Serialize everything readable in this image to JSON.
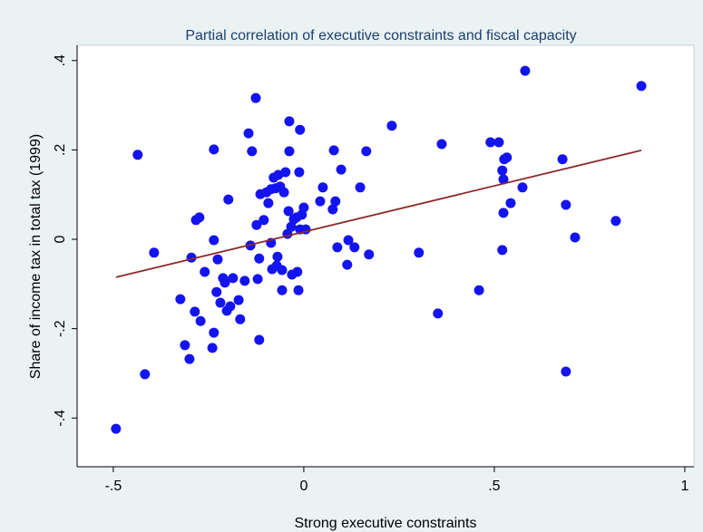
{
  "chart_data": {
    "type": "scatter",
    "title": "Partial correlation of executive constraints and fiscal capacity",
    "xlabel": "Strong executive constraints",
    "ylabel": "Share of income tax in total tax (1999)",
    "color": "#1414f0",
    "x": [
      -0.493,
      -0.436,
      -0.417,
      -0.393,
      -0.324,
      -0.312,
      -0.3,
      -0.295,
      -0.283,
      -0.274,
      -0.286,
      -0.271,
      -0.26,
      -0.24,
      -0.236,
      -0.236,
      -0.236,
      -0.229,
      -0.226,
      -0.219,
      -0.212,
      -0.207,
      -0.202,
      -0.198,
      -0.193,
      -0.186,
      -0.171,
      -0.167,
      -0.155,
      -0.145,
      -0.14,
      -0.136,
      -0.124,
      -0.126,
      -0.121,
      -0.117,
      -0.117,
      -0.114,
      -0.105,
      -0.098,
      -0.093,
      -0.086,
      -0.086,
      -0.083,
      -0.079,
      -0.074,
      -0.071,
      -0.069,
      -0.067,
      -0.062,
      -0.057,
      -0.057,
      -0.052,
      -0.048,
      -0.043,
      -0.04,
      -0.038,
      -0.038,
      -0.033,
      -0.031,
      -0.026,
      -0.019,
      -0.017,
      -0.014,
      -0.012,
      -0.01,
      -0.01,
      -0.005,
      0.0,
      0.005,
      0.043,
      0.05,
      0.076,
      0.079,
      0.083,
      0.088,
      0.098,
      0.114,
      0.117,
      0.133,
      0.148,
      0.164,
      0.171,
      0.231,
      0.302,
      0.352,
      0.362,
      0.46,
      0.49,
      0.512,
      0.521,
      0.526,
      0.524,
      0.521,
      0.524,
      0.533,
      0.543,
      0.574,
      0.581,
      0.679,
      0.688,
      0.688,
      0.712,
      0.819,
      0.886
    ],
    "y": [
      -0.424,
      0.189,
      -0.302,
      -0.03,
      -0.134,
      -0.237,
      -0.268,
      -0.041,
      0.043,
      0.049,
      -0.162,
      -0.183,
      -0.073,
      -0.243,
      -0.209,
      0.201,
      -0.002,
      -0.118,
      -0.045,
      -0.142,
      -0.087,
      -0.097,
      -0.16,
      0.089,
      -0.15,
      -0.087,
      -0.136,
      -0.179,
      -0.093,
      0.237,
      -0.014,
      0.197,
      0.032,
      0.316,
      -0.089,
      -0.225,
      -0.043,
      0.101,
      0.043,
      0.105,
      0.081,
      -0.008,
      0.112,
      -0.067,
      0.138,
      0.114,
      -0.059,
      -0.039,
      0.144,
      0.118,
      -0.069,
      -0.114,
      0.105,
      0.15,
      0.012,
      0.063,
      0.197,
      0.264,
      0.028,
      -0.079,
      0.045,
      0.049,
      -0.073,
      -0.114,
      0.15,
      0.022,
      0.245,
      0.055,
      0.071,
      0.022,
      0.085,
      0.116,
      0.067,
      0.199,
      0.085,
      -0.018,
      0.156,
      -0.057,
      -0.002,
      -0.018,
      0.116,
      0.197,
      -0.034,
      0.254,
      -0.03,
      -0.166,
      0.213,
      -0.114,
      0.217,
      0.217,
      0.154,
      0.179,
      0.134,
      -0.024,
      0.059,
      0.183,
      0.081,
      0.116,
      0.377,
      0.179,
      0.077,
      -0.296,
      0.004,
      0.041,
      0.343
    ],
    "fit": {
      "x": [
        -0.493,
        0.886
      ],
      "y": [
        -0.085,
        0.199
      ],
      "color": "#8b2a2a"
    },
    "xlim": [
      -0.595,
      1.024
    ],
    "ylim": [
      -0.509,
      0.434
    ],
    "xticks": [
      {
        "value": -0.5,
        "label": "-.5"
      },
      0,
      {
        "value": 0.5,
        "label": ".5"
      },
      1
    ],
    "yticks": [
      {
        "value": -0.4,
        "label": "-.4"
      },
      {
        "value": -0.2,
        "label": "-.2"
      },
      0,
      {
        "value": 0.2,
        "label": ".2"
      },
      {
        "value": 0.4,
        "label": ".4"
      }
    ]
  }
}
